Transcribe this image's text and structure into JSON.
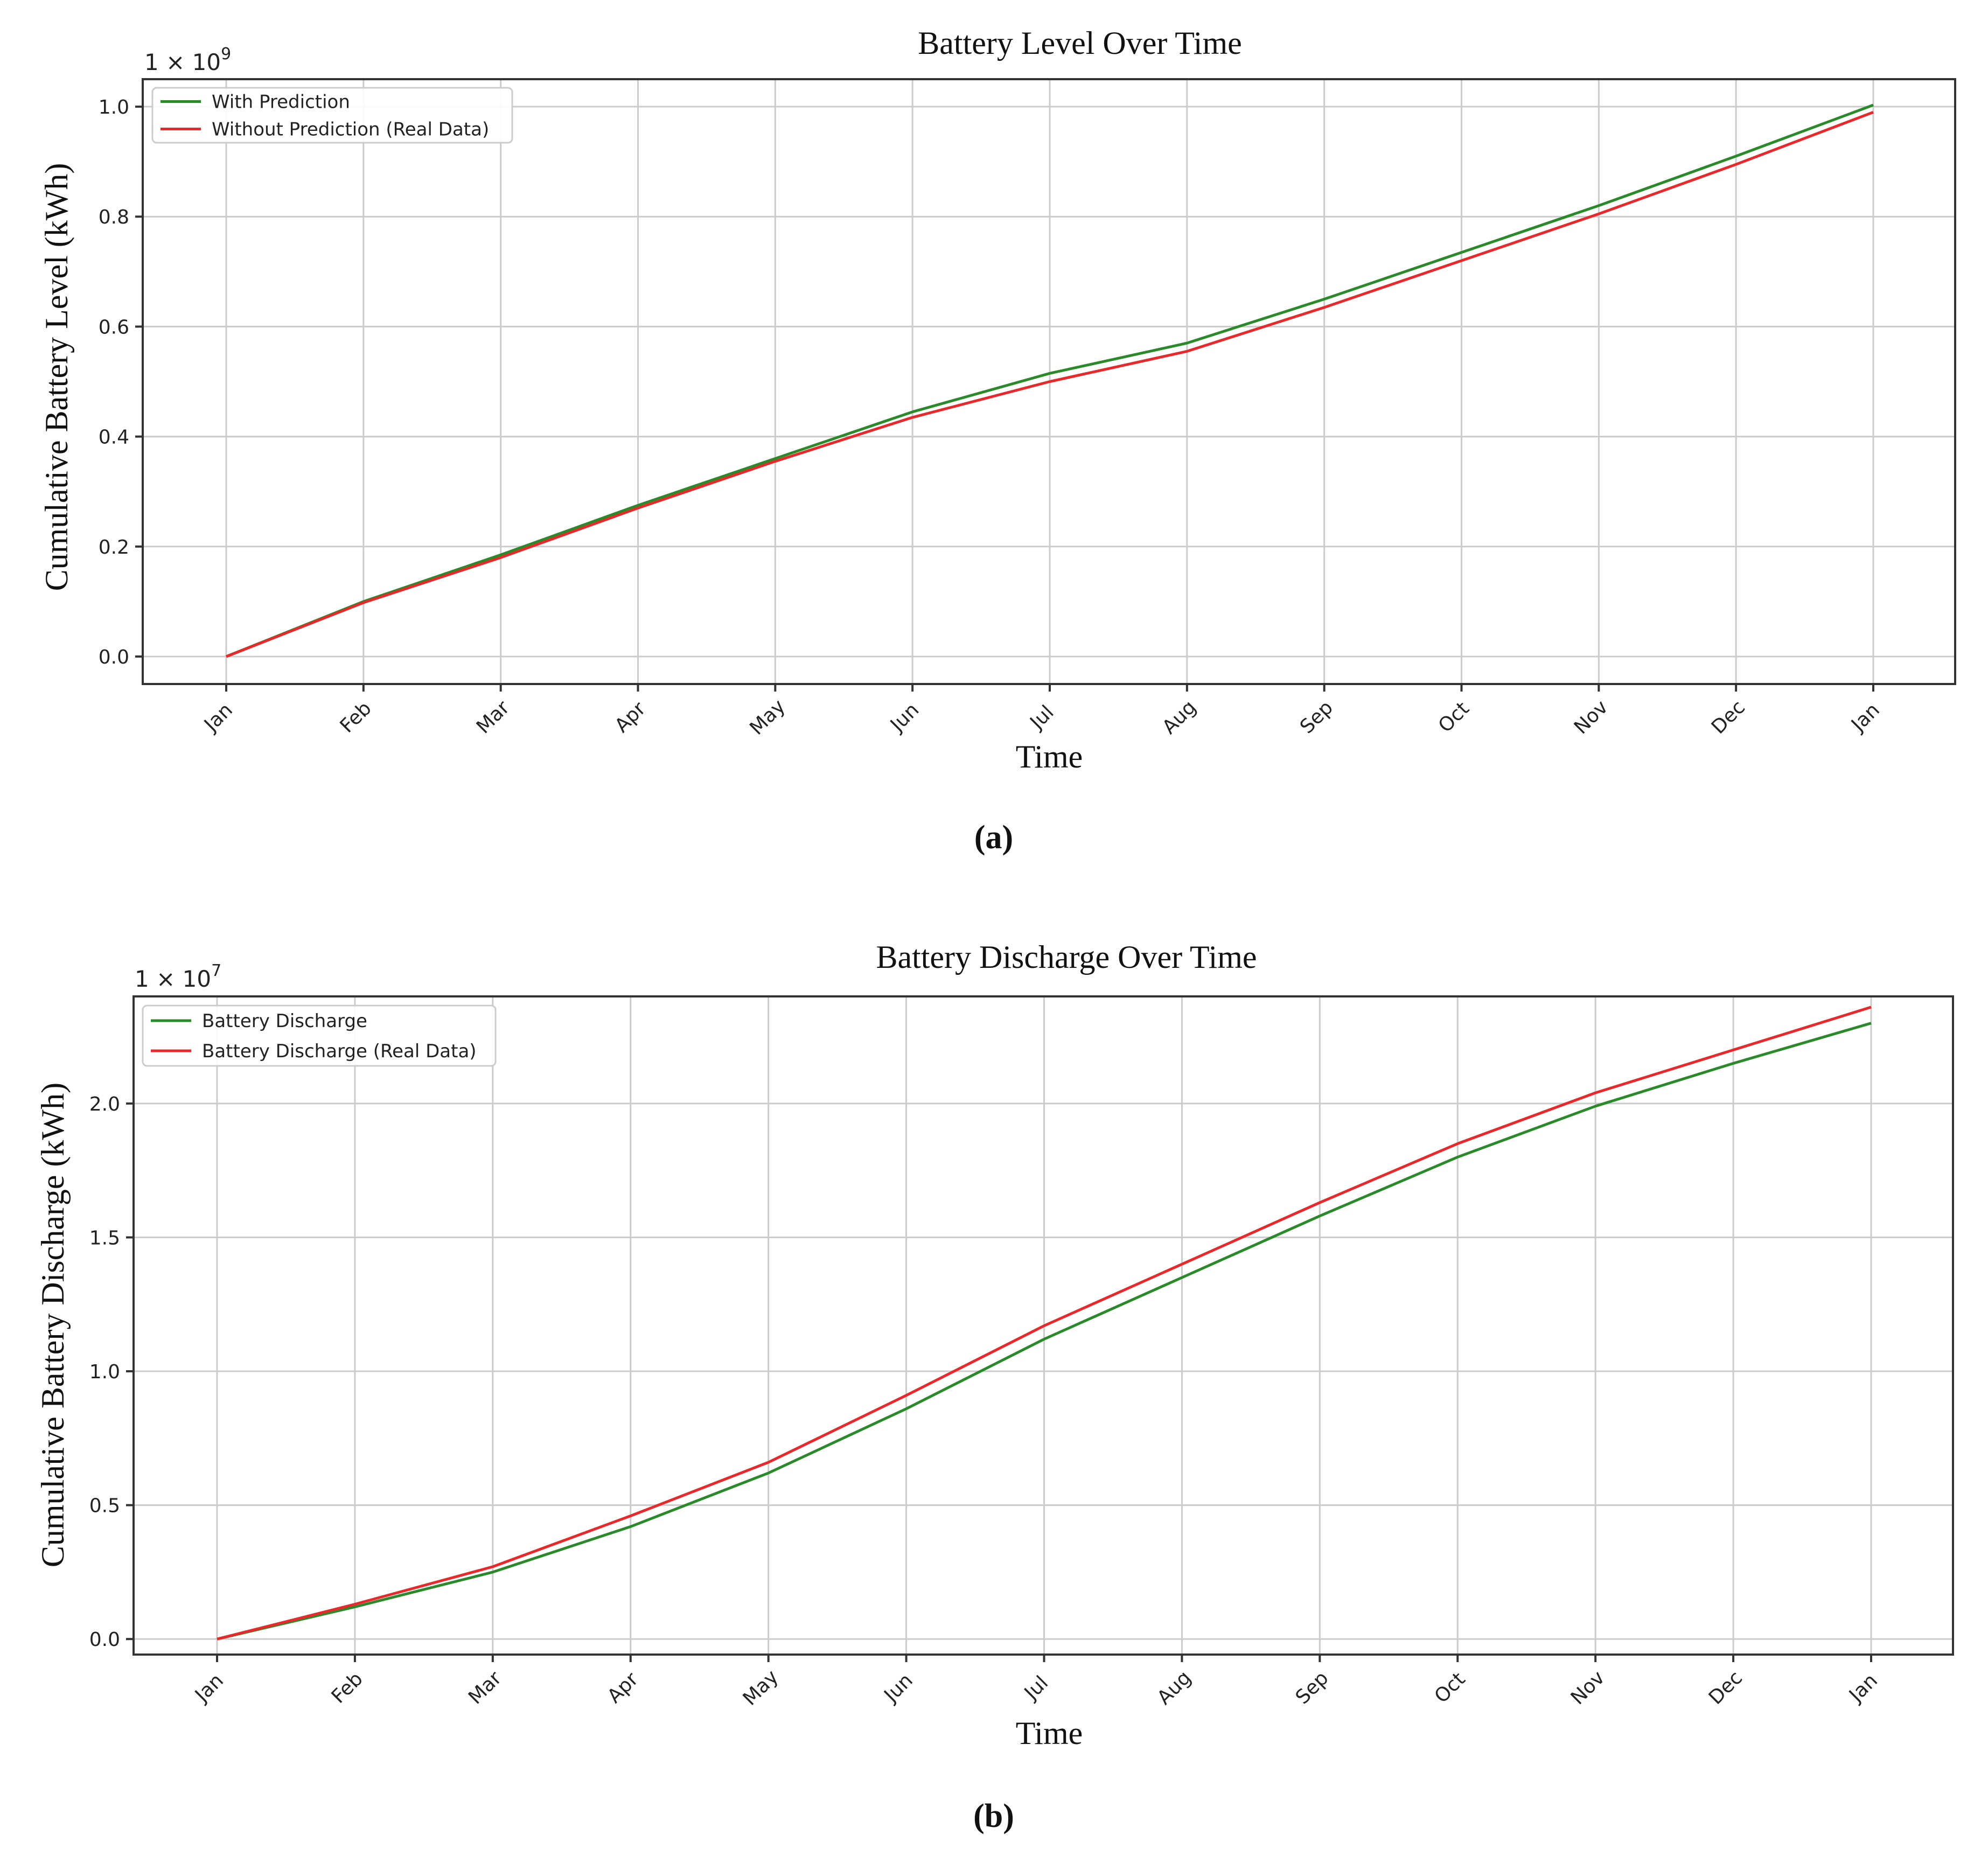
{
  "figure": {
    "panel_labels": [
      "(a)",
      "(b)"
    ]
  },
  "chart_data": [
    {
      "type": "line",
      "title": "Battery Level Over Time",
      "xlabel": "Time",
      "ylabel": "Cumulative Battery Level (kWh)",
      "y_multiplier": "1 × 10",
      "y_exponent": "9",
      "x_ticks": [
        "Jan",
        "Feb",
        "Mar",
        "Apr",
        "May",
        "Jun",
        "Jul",
        "Aug",
        "Sep",
        "Oct",
        "Nov",
        "Dec",
        "Jan"
      ],
      "x": [
        "Jan",
        "Feb",
        "Mar",
        "Apr",
        "May",
        "Jun",
        "Jul",
        "Aug",
        "Sep",
        "Oct",
        "Nov",
        "Dec",
        "Jan"
      ],
      "y_ticks": [
        "0.0",
        "0.2",
        "0.4",
        "0.6",
        "0.8",
        "1.0"
      ],
      "ylim": [
        -0.05,
        1.05
      ],
      "grid": true,
      "legend": "top-left",
      "series": [
        {
          "name": "With Prediction",
          "color": "#2a8a2a",
          "values": [
            0.0,
            0.1,
            0.185,
            0.275,
            0.36,
            0.445,
            0.515,
            0.57,
            0.65,
            0.735,
            0.82,
            0.91,
            1.003
          ]
        },
        {
          "name": "Without Prediction (Real Data)",
          "color": "#e8282b",
          "values": [
            0.0,
            0.098,
            0.18,
            0.27,
            0.355,
            0.435,
            0.5,
            0.555,
            0.635,
            0.72,
            0.805,
            0.895,
            0.99
          ]
        }
      ]
    },
    {
      "type": "line",
      "title": "Battery Discharge Over Time",
      "xlabel": "Time",
      "ylabel": "Cumulative Battery Discharge (kWh)",
      "y_multiplier": "1 × 10",
      "y_exponent": "7",
      "x_ticks": [
        "Jan",
        "Feb",
        "Mar",
        "Apr",
        "May",
        "Jun",
        "Jul",
        "Aug",
        "Sep",
        "Oct",
        "Nov",
        "Dec",
        "Jan"
      ],
      "x": [
        "Jan",
        "Feb",
        "Mar",
        "Apr",
        "May",
        "Jun",
        "Jul",
        "Aug",
        "Sep",
        "Oct",
        "Nov",
        "Dec",
        "Jan"
      ],
      "y_ticks": [
        "0.0",
        "0.5",
        "1.0",
        "1.5",
        "2.0"
      ],
      "ylim": [
        -0.058,
        2.4
      ],
      "grid": true,
      "legend": "top-left",
      "series": [
        {
          "name": "Battery Discharge",
          "color": "#2a8a2a",
          "values": [
            0.0,
            0.12,
            0.25,
            0.42,
            0.62,
            0.86,
            1.12,
            1.35,
            1.58,
            1.8,
            1.99,
            2.15,
            2.3
          ]
        },
        {
          "name": "Battery Discharge (Real Data)",
          "color": "#e8282b",
          "values": [
            0.0,
            0.13,
            0.27,
            0.46,
            0.66,
            0.91,
            1.17,
            1.4,
            1.63,
            1.85,
            2.04,
            2.2,
            2.36
          ]
        }
      ]
    }
  ]
}
